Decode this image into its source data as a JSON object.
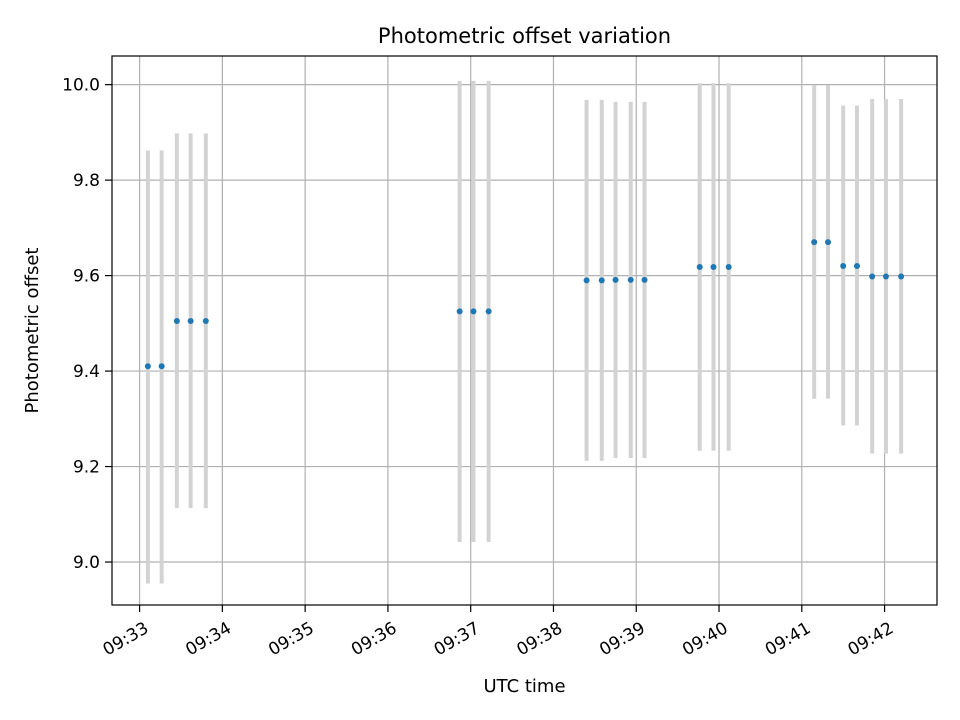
{
  "chart_data": {
    "type": "scatter",
    "title": "Photometric offset variation",
    "xlabel": "UTC time",
    "ylabel": "Photometric offset",
    "xlim": [
      "09:32:40",
      "09:42:38"
    ],
    "ylim": [
      8.91,
      10.06
    ],
    "x_ticks": [
      "09:33",
      "09:34",
      "09:35",
      "09:36",
      "09:37",
      "09:38",
      "09:39",
      "09:40",
      "09:41",
      "09:42"
    ],
    "y_ticks": [
      9.0,
      9.2,
      9.4,
      9.6,
      9.8,
      10.0
    ],
    "y_tick_labels": [
      "9.0",
      "9.2",
      "9.4",
      "9.6",
      "9.8",
      "10.0"
    ],
    "grid": true,
    "point_color": "#1f77b4",
    "errorbar_color": "#d3d3d3",
    "points": [
      {
        "x": "09:33:06",
        "y": 9.41,
        "err_low": 8.955,
        "err_high": 9.862
      },
      {
        "x": "09:33:16",
        "y": 9.41,
        "err_low": 8.955,
        "err_high": 9.862
      },
      {
        "x": "09:33:27",
        "y": 9.505,
        "err_low": 9.113,
        "err_high": 9.898
      },
      {
        "x": "09:33:37",
        "y": 9.505,
        "err_low": 9.113,
        "err_high": 9.898
      },
      {
        "x": "09:33:48",
        "y": 9.505,
        "err_low": 9.113,
        "err_high": 9.898
      },
      {
        "x": "09:36:52",
        "y": 9.525,
        "err_low": 9.042,
        "err_high": 10.008
      },
      {
        "x": "09:37:02",
        "y": 9.525,
        "err_low": 9.042,
        "err_high": 10.008
      },
      {
        "x": "09:37:13",
        "y": 9.525,
        "err_low": 9.042,
        "err_high": 10.008
      },
      {
        "x": "09:38:24",
        "y": 9.59,
        "err_low": 9.212,
        "err_high": 9.968
      },
      {
        "x": "09:38:35",
        "y": 9.59,
        "err_low": 9.212,
        "err_high": 9.968
      },
      {
        "x": "09:38:45",
        "y": 9.591,
        "err_low": 9.218,
        "err_high": 9.964
      },
      {
        "x": "09:38:56",
        "y": 9.591,
        "err_low": 9.218,
        "err_high": 9.964
      },
      {
        "x": "09:39:06",
        "y": 9.591,
        "err_low": 9.218,
        "err_high": 9.964
      },
      {
        "x": "09:39:46",
        "y": 9.618,
        "err_low": 9.233,
        "err_high": 10.003
      },
      {
        "x": "09:39:56",
        "y": 9.618,
        "err_low": 9.233,
        "err_high": 10.003
      },
      {
        "x": "09:40:07",
        "y": 9.618,
        "err_low": 9.233,
        "err_high": 10.003
      },
      {
        "x": "09:41:09",
        "y": 9.67,
        "err_low": 9.342,
        "err_high": 9.999
      },
      {
        "x": "09:41:19",
        "y": 9.67,
        "err_low": 9.342,
        "err_high": 9.999
      },
      {
        "x": "09:41:30",
        "y": 9.62,
        "err_low": 9.286,
        "err_high": 9.956
      },
      {
        "x": "09:41:40",
        "y": 9.62,
        "err_low": 9.286,
        "err_high": 9.956
      },
      {
        "x": "09:41:51",
        "y": 9.598,
        "err_low": 9.227,
        "err_high": 9.97
      },
      {
        "x": "09:42:01",
        "y": 9.598,
        "err_low": 9.227,
        "err_high": 9.97
      },
      {
        "x": "09:42:12",
        "y": 9.598,
        "err_low": 9.227,
        "err_high": 9.97
      }
    ]
  }
}
